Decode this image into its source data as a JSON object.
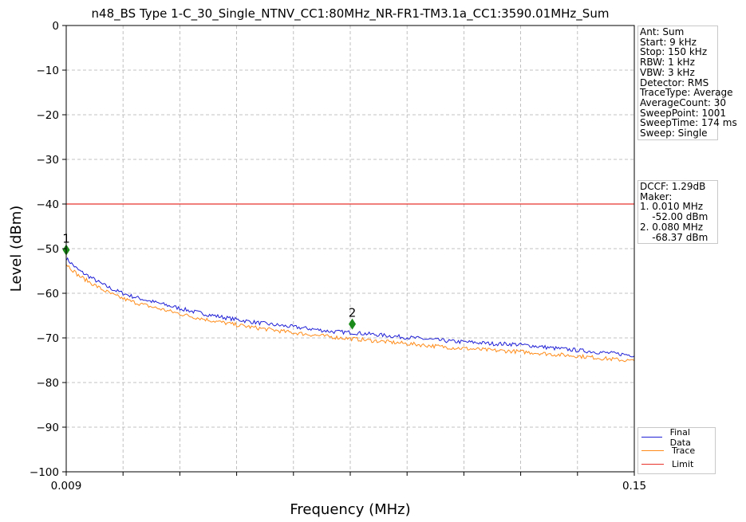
{
  "chart_data": {
    "type": "line",
    "title": "n48_BS Type 1-C_30_Single_NTNV_CC1:80MHz_NR-FR1-TM3.1a_CC1:3590.01MHz_Sum",
    "xlabel": "Frequency (MHz)",
    "ylabel": "Level (dBm)",
    "xlim": [
      0.009,
      0.15
    ],
    "ylim": [
      -100,
      0
    ],
    "x_tick_labels": [
      "0.009",
      "0.15"
    ],
    "y_ticks": [
      0,
      -10,
      -20,
      -30,
      -40,
      -50,
      -60,
      -70,
      -80,
      -90,
      -100
    ],
    "y_tick_labels": [
      "0",
      "−10",
      "−20",
      "−30",
      "−40",
      "−50",
      "−60",
      "−70",
      "−80",
      "−90",
      "−100"
    ],
    "grid": true,
    "series": [
      {
        "name": "Final Data",
        "color": "#1f1fd6",
        "x": [
          0.009,
          0.0105,
          0.012,
          0.015,
          0.018,
          0.021,
          0.025,
          0.03,
          0.035,
          0.04,
          0.045,
          0.05,
          0.055,
          0.06,
          0.065,
          0.07,
          0.075,
          0.08,
          0.085,
          0.09,
          0.095,
          0.1,
          0.105,
          0.11,
          0.115,
          0.12,
          0.125,
          0.13,
          0.135,
          0.14,
          0.145,
          0.15
        ],
        "values": [
          -52.2,
          -53.5,
          -54.8,
          -56.4,
          -58.0,
          -59.3,
          -60.6,
          -61.8,
          -62.9,
          -64.0,
          -64.9,
          -65.7,
          -66.4,
          -67.0,
          -67.5,
          -68.0,
          -68.6,
          -68.8,
          -69.2,
          -69.6,
          -70.0,
          -70.4,
          -70.8,
          -71.0,
          -71.3,
          -71.4,
          -71.8,
          -72.3,
          -72.7,
          -73.1,
          -73.5,
          -73.9
        ]
      },
      {
        "name": "Trace",
        "color": "#ff8c1a",
        "x": [
          0.009,
          0.0105,
          0.012,
          0.015,
          0.018,
          0.021,
          0.025,
          0.03,
          0.035,
          0.04,
          0.045,
          0.05,
          0.055,
          0.06,
          0.065,
          0.07,
          0.075,
          0.08,
          0.085,
          0.09,
          0.095,
          0.1,
          0.105,
          0.11,
          0.115,
          0.12,
          0.125,
          0.13,
          0.135,
          0.14,
          0.145,
          0.15
        ],
        "values": [
          -53.4,
          -54.7,
          -56.0,
          -57.6,
          -59.2,
          -60.5,
          -61.8,
          -63.0,
          -64.1,
          -65.2,
          -66.1,
          -66.9,
          -67.6,
          -68.2,
          -68.8,
          -69.3,
          -69.8,
          -70.2,
          -70.6,
          -71.0,
          -71.4,
          -71.8,
          -72.2,
          -72.5,
          -72.8,
          -73.0,
          -73.3,
          -73.7,
          -74.0,
          -74.4,
          -74.8,
          -75.2
        ]
      },
      {
        "name": "Limit",
        "color": "#e8322a",
        "x": [
          0.009,
          0.15
        ],
        "values": [
          -40,
          -40
        ]
      }
    ],
    "markers": [
      {
        "label": "1",
        "x": 0.009,
        "y": -50.3,
        "color": "#1a8a1a"
      },
      {
        "label": "2",
        "x": 0.08,
        "y": -66.9,
        "color": "#1a8a1a"
      }
    ],
    "legend_position": "bottom-right"
  },
  "info_panel": {
    "lines": [
      "Ant: Sum",
      "Start: 9 kHz",
      "Stop: 150 kHz",
      "RBW: 1 kHz",
      "VBW: 3 kHz",
      "Detector: RMS",
      "TraceType: Average",
      "AverageCount: 30",
      "SweepPoint: 1001",
      "SweepTime: 174 ms",
      "Sweep: Single"
    ]
  },
  "marker_panel": {
    "lines": [
      "DCCF: 1.29dB",
      "Maker:",
      "1. 0.010 MHz",
      "    -52.00 dBm",
      "2. 0.080 MHz",
      "    -68.37 dBm"
    ]
  }
}
